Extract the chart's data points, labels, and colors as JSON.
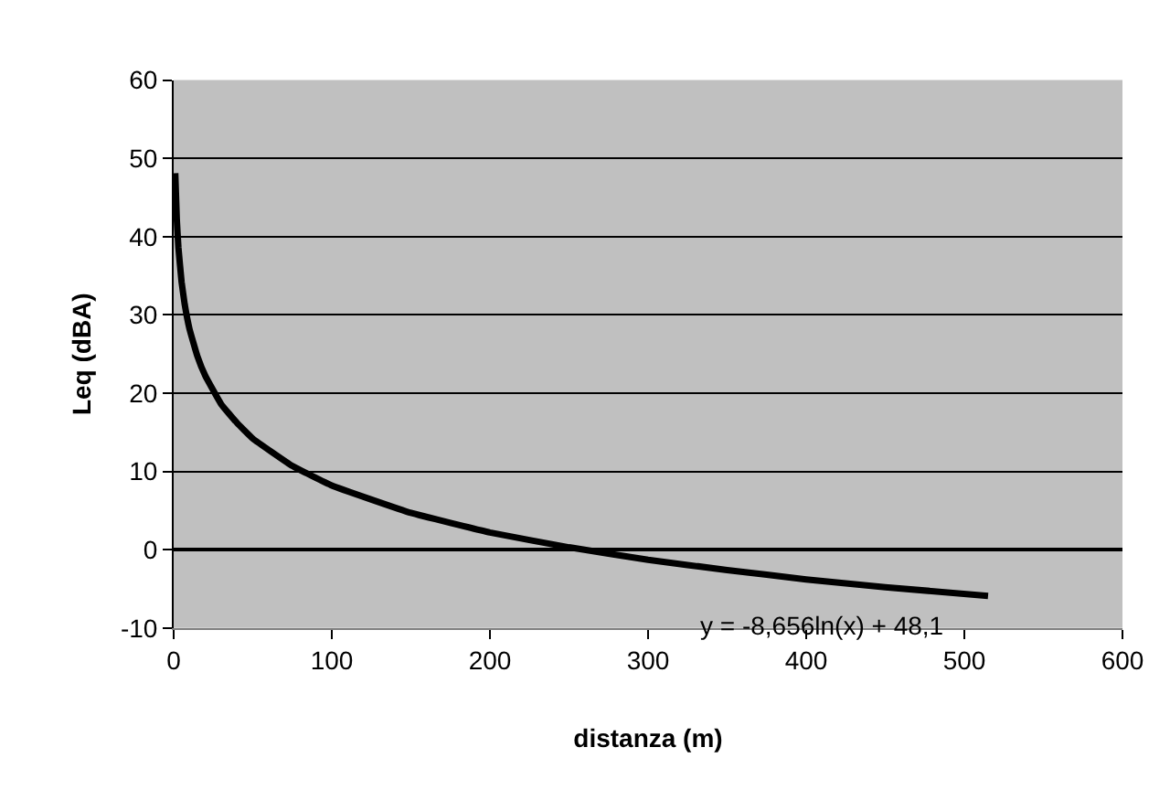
{
  "chart_data": {
    "type": "line",
    "xlabel": "distanza (m)",
    "ylabel": "Leq (dBA)",
    "x": [
      1,
      2,
      3,
      5,
      7,
      10,
      15,
      20,
      30,
      40,
      50,
      75,
      100,
      150,
      200,
      250,
      300,
      350,
      400,
      450,
      515
    ],
    "series": [
      {
        "color": "#000000",
        "values": [
          48.1,
          42.1,
          38.6,
          34.2,
          31.3,
          28.2,
          24.7,
          22.2,
          18.6,
          16.2,
          14.2,
          10.7,
          8.2,
          4.7,
          2.2,
          0.3,
          -1.3,
          -2.6,
          -3.8,
          -4.8,
          -5.9
        ]
      }
    ],
    "xlim": [
      0,
      600
    ],
    "xticks": [
      0,
      100,
      200,
      300,
      400,
      500,
      600
    ],
    "ylim": [
      -10,
      60
    ],
    "yticks": [
      -10,
      0,
      10,
      20,
      30,
      40,
      50,
      60
    ],
    "grid": "y",
    "marker": "none",
    "line_style": "solid",
    "annotations": [
      {
        "text": "y = -8,656ln(x) + 48,1",
        "x": 410,
        "y": -4
      }
    ]
  }
}
